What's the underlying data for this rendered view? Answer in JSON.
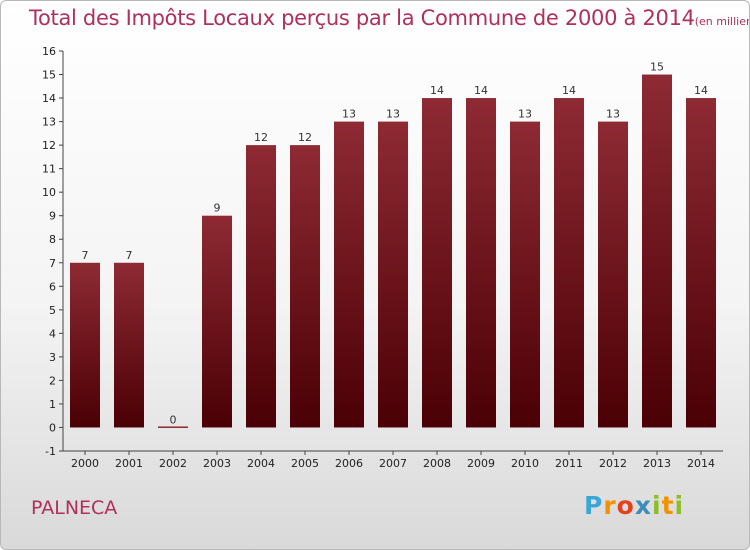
{
  "chart_data": {
    "type": "bar",
    "title": "Total des Impôts Locaux perçus par la Commune de 2000 à 2014",
    "unit": "(en milliers d'€)",
    "categories": [
      "2000",
      "2001",
      "2002",
      "2003",
      "2004",
      "2005",
      "2006",
      "2007",
      "2008",
      "2009",
      "2010",
      "2011",
      "2012",
      "2013",
      "2014"
    ],
    "values": [
      7,
      7,
      0,
      9,
      12,
      12,
      13,
      13,
      14,
      14,
      13,
      14,
      13,
      15,
      14
    ],
    "ylim": [
      -1,
      16
    ],
    "yticks": [
      -1,
      0,
      1,
      2,
      3,
      4,
      5,
      6,
      7,
      8,
      9,
      10,
      11,
      12,
      13,
      14,
      15,
      16
    ],
    "grid": false,
    "bar_color": "#7a1a22"
  },
  "commune": "PALNECA",
  "logo": {
    "letters": [
      "P",
      "r",
      "o",
      "x",
      "i",
      "t",
      "i"
    ],
    "colors": [
      "#3aa7d8",
      "#f39200",
      "#e2421c",
      "#3c8dbc",
      "#8cbf26",
      "#f39200",
      "#8cbf26"
    ]
  }
}
